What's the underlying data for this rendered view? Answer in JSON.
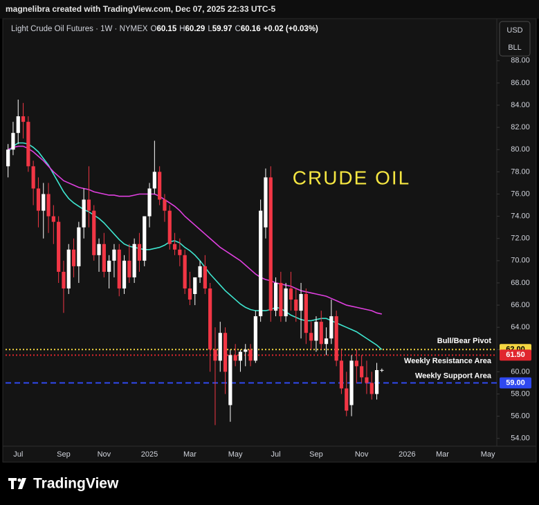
{
  "header": {
    "text": "magnelibra created with TradingView.com, Dec 07, 2025 22:33 UTC-5"
  },
  "chart_data": {
    "type": "candlestick",
    "title": "Light Crude Oil Futures · 1W · NYMEX",
    "ohlc_labels": [
      "O",
      "H",
      "L",
      "C"
    ],
    "change": "+0.02 (+0.03%)",
    "currency": [
      "USD",
      "BLL"
    ],
    "annotation": "CRUDE OIL",
    "annotation_color": "#f5e642",
    "up_color": "#ffffff",
    "down_color": "#f23645",
    "categories": [
      null,
      null,
      "Jul",
      null,
      null,
      null,
      null,
      null,
      null,
      null,
      null,
      "Sep",
      null,
      null,
      null,
      null,
      null,
      null,
      null,
      "Nov",
      null,
      null,
      null,
      null,
      null,
      null,
      null,
      null,
      "2025",
      null,
      null,
      null,
      null,
      null,
      null,
      null,
      "Mar",
      null,
      null,
      null,
      null,
      null,
      null,
      null,
      null,
      "May",
      null,
      null,
      null,
      null,
      null,
      null,
      null,
      "Jul",
      null,
      null,
      null,
      null,
      null,
      null,
      null,
      "Sep",
      null,
      null,
      null,
      null,
      null,
      null,
      null,
      null,
      "Nov",
      null,
      null,
      null,
      null,
      null,
      null,
      null,
      null,
      "2026",
      null,
      null,
      null,
      null,
      null,
      null,
      "Mar",
      null,
      null,
      null,
      null,
      null,
      null,
      null,
      null,
      "May",
      null
    ],
    "open": [
      78.5,
      80,
      81.5,
      83,
      82.5,
      78.5,
      76.5,
      74.5,
      76,
      74,
      73.5,
      69,
      67.5,
      71,
      69.5,
      73,
      75.5,
      74.5,
      70.5,
      71.5,
      69,
      70,
      71,
      67.5,
      70,
      68.5,
      71.5,
      70,
      74,
      76.5,
      78,
      75.5,
      74.5,
      71.5,
      71,
      70.5,
      67.5,
      67,
      68.5,
      69.5,
      67.5,
      62,
      61,
      63.5,
      57,
      61.5,
      61,
      61.8,
      62,
      61,
      65,
      73,
      77.5,
      65.5,
      68,
      65,
      67.5,
      66.5,
      65.5,
      67,
      63.5,
      62.8,
      64.5,
      62.5,
      63,
      65,
      61,
      58.5,
      57,
      61,
      60.5,
      59.5,
      59,
      58,
      60.15,
      null,
      null,
      null,
      null,
      null,
      null,
      null,
      null,
      null,
      null,
      null,
      null,
      null,
      null,
      null,
      null,
      null,
      null,
      null,
      null,
      null,
      null
    ],
    "high": [
      80.5,
      82.5,
      84.5,
      84.2,
      83,
      79,
      77.5,
      77,
      77,
      75,
      74,
      70,
      71.5,
      72,
      73.5,
      76.5,
      78.5,
      75,
      72,
      72.5,
      70.5,
      71.5,
      71.5,
      70.5,
      71.5,
      72,
      72.5,
      74,
      77,
      80.8,
      78.5,
      76,
      75,
      72.5,
      72,
      71,
      69,
      68.5,
      70,
      70.5,
      68,
      64,
      64.5,
      64,
      62,
      62.5,
      62,
      62.5,
      62.5,
      65.5,
      75.5,
      78.3,
      78.5,
      68.5,
      69,
      68,
      69,
      67.5,
      68,
      67.5,
      64.5,
      65,
      65.5,
      64,
      66.5,
      65.5,
      62,
      60,
      61.5,
      62,
      61.5,
      61,
      60,
      60.8,
      60.29,
      null,
      null,
      null,
      null,
      null,
      null,
      null,
      null,
      null,
      null,
      null,
      null,
      null,
      null,
      null,
      null,
      null,
      null,
      null,
      null,
      null,
      null
    ],
    "low": [
      77.5,
      79.5,
      80.5,
      81,
      78,
      75,
      73,
      72,
      72.5,
      71.5,
      68,
      65.3,
      67,
      68.5,
      68,
      72,
      73,
      70,
      69,
      68.5,
      67.5,
      68.5,
      66.8,
      67,
      68,
      68,
      69,
      69.5,
      73,
      76,
      75,
      73.5,
      71,
      70.5,
      69.5,
      67,
      66,
      66,
      68,
      67,
      60,
      55.2,
      60,
      58,
      55.5,
      60.5,
      60,
      60.5,
      60.5,
      60.8,
      64.5,
      72,
      64.5,
      65,
      64.5,
      64.5,
      65.5,
      64.5,
      63,
      62.5,
      62,
      61.8,
      62,
      61.5,
      62.5,
      60.5,
      58,
      56,
      56,
      59,
      59,
      58,
      57.5,
      57.5,
      59.97,
      null,
      null,
      null,
      null,
      null,
      null,
      null,
      null,
      null,
      null,
      null,
      null,
      null,
      null,
      null,
      null,
      null,
      null,
      null,
      null,
      null,
      null
    ],
    "close": [
      80,
      81.5,
      83,
      82.5,
      78.5,
      76.5,
      74.5,
      76,
      74,
      73.5,
      69,
      67.5,
      71,
      69.5,
      73,
      75.5,
      74.5,
      70.5,
      71.5,
      69,
      70,
      71,
      67.5,
      70,
      68.5,
      71.5,
      70,
      74,
      76.5,
      78,
      75.5,
      74.5,
      71.5,
      71,
      70.5,
      67.5,
      66.5,
      68.5,
      69.5,
      67.5,
      62,
      61,
      63.5,
      60,
      61.5,
      61,
      61.8,
      62,
      61,
      65,
      74.5,
      77.5,
      65.5,
      68,
      65,
      67.5,
      66.5,
      65.5,
      67,
      63.5,
      62.8,
      64.5,
      62.5,
      63,
      65,
      61,
      58.5,
      56.5,
      61,
      60.5,
      59.5,
      59,
      58,
      60.15,
      60.16,
      null,
      null,
      null,
      null,
      null,
      null,
      null,
      null,
      null,
      null,
      null,
      null,
      null,
      null,
      null,
      null,
      null,
      null,
      null,
      null,
      null,
      null
    ],
    "overlays": [
      {
        "color": "#3ee6d0",
        "values": [
          79.8,
          80.3,
          80.6,
          80.6,
          80.5,
          80.2,
          79.8,
          79.2,
          78.6,
          77.8,
          77.0,
          76.2,
          75.6,
          75.2,
          74.9,
          74.6,
          74.4,
          74.1,
          73.8,
          73.4,
          72.9,
          72.4,
          71.9,
          71.5,
          71.3,
          71.2,
          71.1,
          71.0,
          71.0,
          71.1,
          71.2,
          71.4,
          71.7,
          71.8,
          71.6,
          71.2,
          70.9,
          70.5,
          70.0,
          69.4,
          68.8,
          68.3,
          67.8,
          67.3,
          66.9,
          66.5,
          66.1,
          65.8,
          65.6,
          65.5,
          65.5,
          65.5,
          65.6,
          65.8,
          65.7,
          65.4,
          65.1,
          64.9,
          64.7,
          64.6,
          64.6,
          64.7,
          64.8,
          64.8,
          64.6,
          64.4,
          64.2,
          64.0,
          63.8,
          63.6,
          63.3,
          63.0,
          62.7,
          62.4,
          62.0,
          null,
          null,
          null,
          null,
          null,
          null,
          null,
          null,
          null,
          null,
          null,
          null,
          null,
          null,
          null,
          null,
          null,
          null,
          null,
          null,
          null,
          null
        ]
      },
      {
        "color": "#e040e0",
        "values": [
          80.0,
          80.2,
          80.3,
          80.3,
          80.1,
          79.8,
          79.4,
          79.0,
          78.5,
          78.0,
          77.6,
          77.2,
          77.0,
          76.8,
          76.6,
          76.5,
          76.4,
          76.2,
          76.1,
          76.0,
          75.9,
          75.9,
          75.8,
          75.8,
          75.8,
          75.9,
          76.0,
          76.0,
          76.0,
          76.0,
          75.8,
          75.5,
          75.2,
          74.9,
          74.5,
          74.0,
          73.6,
          73.2,
          72.8,
          72.4,
          72.0,
          71.6,
          71.2,
          70.9,
          70.6,
          70.3,
          70.0,
          69.6,
          69.2,
          68.8,
          68.5,
          68.3,
          68.2,
          68.0,
          67.9,
          67.8,
          67.7,
          67.5,
          67.3,
          67.2,
          67.1,
          67.0,
          66.9,
          66.8,
          66.6,
          66.4,
          66.2,
          66.0,
          65.9,
          65.8,
          65.7,
          65.6,
          65.5,
          65.3,
          65.2,
          null,
          null,
          null,
          null,
          null,
          null,
          null,
          null,
          null,
          null,
          null,
          null,
          null,
          null,
          null,
          null,
          null,
          null,
          null,
          null,
          null,
          null
        ]
      }
    ],
    "levels": [
      {
        "value": 62,
        "value_label": "62.00",
        "label": "Bull/Bear Pivot",
        "color": "#f5d742",
        "style": "dotted"
      },
      {
        "value": 61.5,
        "value_label": "61.50",
        "label": "Weekly Resistance Area",
        "color": "#e0262e",
        "style": "dotted"
      },
      {
        "value": 59,
        "value_label": "59.00",
        "label": "Weekly Support Area",
        "color": "#2f49f0",
        "style": "dashed"
      }
    ],
    "ylim": [
      53.3,
      91.6
    ],
    "yticks": [
      {
        "value": 54,
        "label": "54.00"
      },
      {
        "value": 56,
        "label": "56.00"
      },
      {
        "value": 58,
        "label": "58.00"
      },
      {
        "value": 60,
        "label": "60.00"
      },
      {
        "value": 62,
        "label": "62.00"
      },
      {
        "value": 64,
        "label": "64.00"
      },
      {
        "value": 66,
        "label": "66.00"
      },
      {
        "value": 68,
        "label": "68.00"
      },
      {
        "value": 70,
        "label": "70.00"
      },
      {
        "value": 72,
        "label": "72.00"
      },
      {
        "value": 74,
        "label": "74.00"
      },
      {
        "value": 76,
        "label": "76.00"
      },
      {
        "value": 78,
        "label": "78.00"
      },
      {
        "value": 80,
        "label": "80.00"
      },
      {
        "value": 82,
        "label": "82.00"
      },
      {
        "value": 84,
        "label": "84.00"
      },
      {
        "value": 86,
        "label": "86.00"
      },
      {
        "value": 88,
        "label": "88.00"
      }
    ],
    "grid": false
  },
  "footer": {
    "brand": "TradingView"
  }
}
